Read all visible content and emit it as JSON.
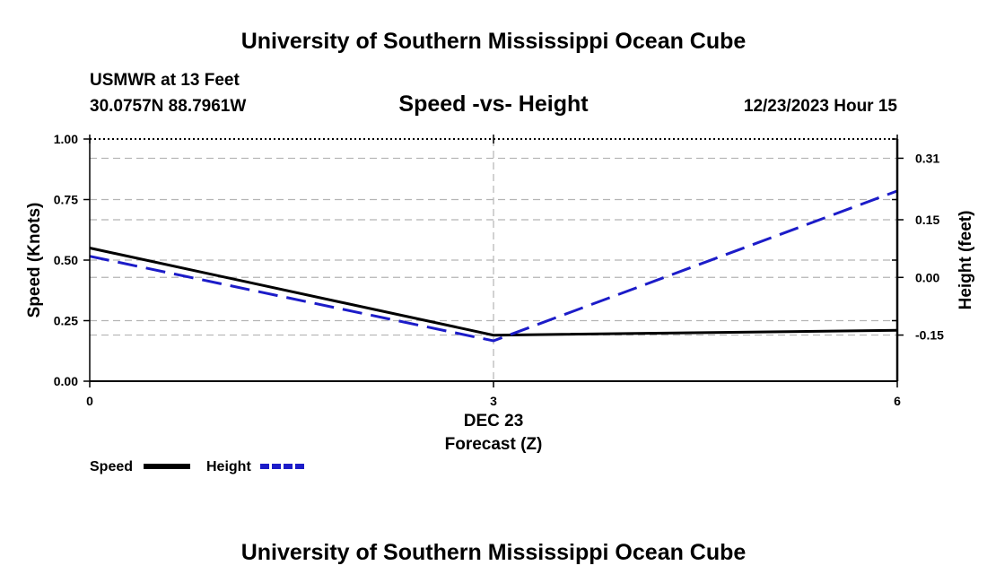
{
  "header": {
    "title": "University of Southern Mississippi Ocean Cube",
    "station": "USMWR at 13 Feet",
    "coords": "30.0757N  88.7961W",
    "subtitle": "Speed -vs- Height",
    "datetime": "12/23/2023 Hour 15"
  },
  "footer": {
    "title": "University of Southern Mississippi Ocean Cube"
  },
  "legend": {
    "speed_label": "Speed",
    "height_label": "Height"
  },
  "colors": {
    "speed": "#000000",
    "height": "#1c1cc8",
    "grid": "#b4b4b4"
  },
  "chart_data": {
    "type": "line",
    "title": "Speed -vs- Height",
    "x": [
      0,
      3,
      6
    ],
    "xlim": [
      0,
      6
    ],
    "x_ticks": [
      0,
      3,
      6
    ],
    "x_tick_labels": [
      "0",
      "3",
      "6"
    ],
    "x_date_label": "DEC 23",
    "xlabel": "Forecast (Z)",
    "ylabel": "Speed (Knots)",
    "ylim": [
      0,
      1
    ],
    "y_ticks": [
      0,
      0.25,
      0.5,
      0.75,
      1.0
    ],
    "y_tick_labels": [
      "0.00",
      "0.25",
      "0.50",
      "0.75",
      "1.00"
    ],
    "y2label": "Height (feet)",
    "y2lim": [
      -0.27,
      0.36
    ],
    "y2_ticks": [
      -0.15,
      0.0,
      0.15,
      0.31
    ],
    "y2_tick_labels": [
      "-0.15",
      "0.00",
      "0.15",
      "0.31"
    ],
    "grid": true,
    "legend_position": "bottom-left",
    "series": [
      {
        "name": "Speed",
        "axis": "left",
        "values": [
          0.55,
          0.19,
          0.21
        ]
      },
      {
        "name": "Height",
        "axis": "right",
        "values": [
          0.055,
          -0.165,
          0.225
        ]
      }
    ]
  }
}
